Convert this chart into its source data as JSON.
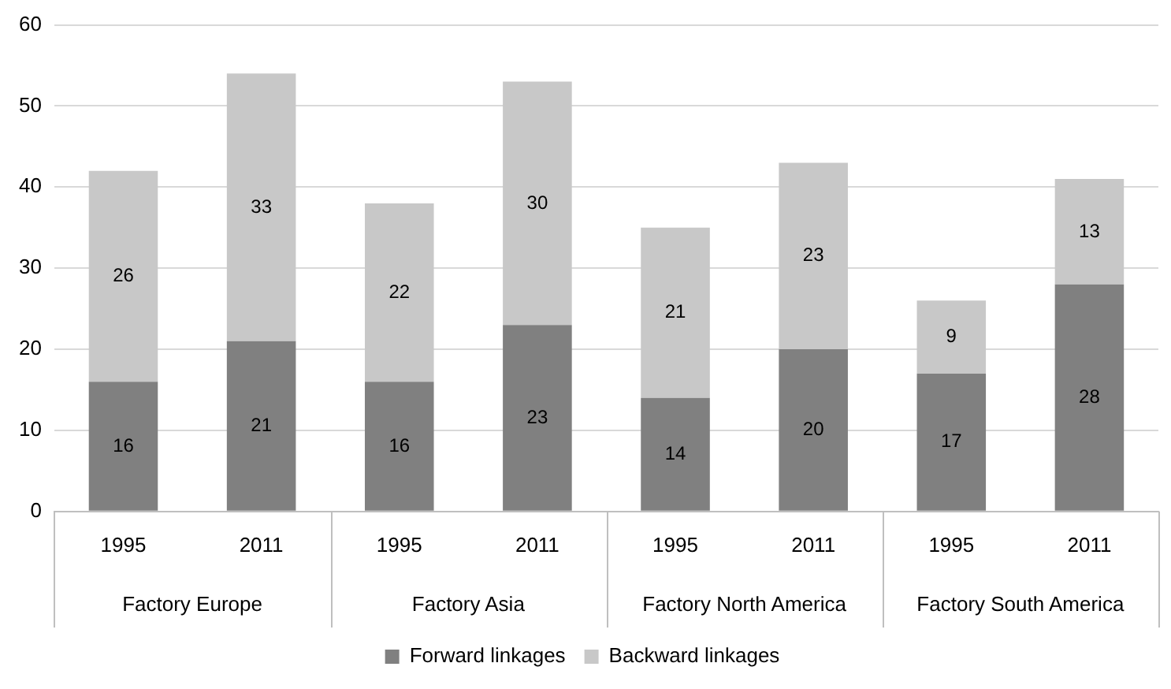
{
  "chart_data": {
    "type": "bar",
    "stacked": true,
    "categories": [
      "1995",
      "2011",
      "1995",
      "2011",
      "1995",
      "2011",
      "1995",
      "2011"
    ],
    "series": [
      {
        "name": "Forward linkages",
        "color": "#808080",
        "values": [
          16,
          21,
          16,
          23,
          14,
          20,
          17,
          28
        ]
      },
      {
        "name": "Backward linkages",
        "color": "#c8c8c8",
        "values": [
          26,
          33,
          22,
          30,
          21,
          23,
          9,
          13
        ]
      }
    ],
    "annotations": [
      "Factory Europe",
      "Factory Asia",
      "Factory North America",
      "Factory South America"
    ],
    "ylim": [
      0,
      60
    ],
    "yticks": [
      0,
      10,
      20,
      30,
      40,
      50,
      60
    ],
    "grid": "y",
    "legend": "bottom",
    "data_labels": true
  }
}
